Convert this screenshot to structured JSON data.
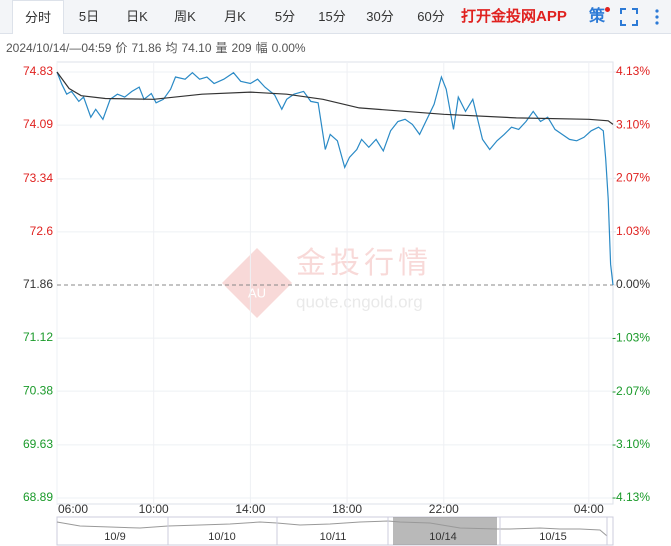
{
  "toolbar": {
    "tabs": [
      "分时",
      "5日",
      "日K",
      "周K",
      "月K",
      "5分",
      "15分",
      "30分",
      "60分"
    ],
    "app_link": "打开金投网APP",
    "strategy": "策"
  },
  "info": {
    "time": "2024/10/14/—04:59",
    "items": [
      {
        "label": "价",
        "value": "71.86"
      },
      {
        "label": "均",
        "value": "74.10"
      },
      {
        "label": "量",
        "value": "209"
      },
      {
        "label": "幅",
        "value": "0.00%"
      }
    ]
  },
  "watermark": {
    "name": "金投行情",
    "url": "quote.cngold.org",
    "badge": "AU"
  },
  "navigator": {
    "dates": [
      "10/9",
      "10/10",
      "10/11",
      "10/14",
      "10/15"
    ]
  },
  "chart_data": {
    "type": "line",
    "xlim": [
      0,
      23
    ],
    "xticks": [
      {
        "value": 0,
        "label": "06:00"
      },
      {
        "value": 4,
        "label": "10:00"
      },
      {
        "value": 8,
        "label": "14:00"
      },
      {
        "value": 12,
        "label": "18:00"
      },
      {
        "value": 16,
        "label": "22:00"
      },
      {
        "value": 22,
        "label": "04:00"
      }
    ],
    "ylim": [
      68.89,
      74.83
    ],
    "yticks": [
      68.89,
      69.63,
      70.38,
      71.12,
      71.86,
      72.6,
      73.34,
      74.09,
      74.83
    ],
    "y2lim": [
      -4.13,
      4.13
    ],
    "y2ticks": [
      {
        "value": -4.13,
        "label": "-4.13%"
      },
      {
        "value": -3.1,
        "label": "-3.10%"
      },
      {
        "value": -2.07,
        "label": "-2.07%"
      },
      {
        "value": -1.03,
        "label": "-1.03%"
      },
      {
        "value": 0,
        "label": "0.00%"
      },
      {
        "value": 1.03,
        "label": "1.03%"
      },
      {
        "value": 2.07,
        "label": "2.07%"
      },
      {
        "value": 3.1,
        "label": "3.10%"
      },
      {
        "value": 4.13,
        "label": "4.13%"
      }
    ],
    "baseline": 71.86,
    "grid": true,
    "series": [
      {
        "color": "#2a8ac6",
        "x": [
          0,
          0.2,
          0.4,
          0.6,
          0.9,
          1.1,
          1.4,
          1.6,
          1.9,
          2.2,
          2.5,
          2.8,
          3.1,
          3.4,
          3.6,
          3.9,
          4.1,
          4.4,
          4.7,
          4.9,
          5.3,
          5.6,
          5.9,
          6.2,
          6.5,
          6.9,
          7.3,
          7.6,
          8,
          8.3,
          8.6,
          9,
          9.3,
          9.5,
          9.8,
          10.2,
          10.5,
          10.8,
          11.1,
          11.3,
          11.6,
          11.9,
          12.1,
          12.4,
          12.6,
          12.9,
          13.2,
          13.5,
          13.8,
          14.1,
          14.4,
          14.7,
          15,
          15.3,
          15.6,
          15.9,
          16.1,
          16.4,
          16.6,
          16.9,
          17.2,
          17.6,
          17.9,
          18.2,
          18.5,
          18.8,
          19.1,
          19.4,
          19.7,
          20,
          20.3,
          20.6,
          20.9,
          21.2,
          21.5,
          21.8,
          22.1,
          22.4,
          22.6,
          22.7,
          22.8,
          22.9,
          23
        ],
        "values": [
          74.83,
          74.66,
          74.52,
          74.56,
          74.42,
          74.48,
          74.2,
          74.31,
          74.17,
          74.45,
          74.52,
          74.48,
          74.56,
          74.62,
          74.45,
          74.53,
          74.4,
          74.45,
          74.59,
          74.76,
          74.73,
          74.82,
          74.73,
          74.76,
          74.67,
          74.73,
          74.82,
          74.7,
          74.67,
          74.73,
          74.62,
          74.51,
          74.31,
          74.45,
          74.52,
          74.56,
          74.42,
          74.4,
          73.75,
          73.96,
          73.87,
          73.5,
          73.64,
          73.75,
          73.89,
          73.78,
          73.89,
          73.73,
          74.01,
          74.14,
          74.17,
          74.1,
          73.96,
          74.17,
          74.38,
          74.76,
          74.59,
          74.03,
          74.48,
          74.28,
          74.45,
          73.89,
          73.75,
          73.87,
          73.96,
          74.06,
          74.03,
          74.14,
          74.28,
          74.14,
          74.2,
          74.03,
          73.96,
          73.89,
          73.87,
          73.92,
          74.01,
          74.06,
          74.01,
          73.62,
          73.06,
          72.15,
          71.86
        ]
      },
      {
        "color": "#333333",
        "x": [
          0,
          0.5,
          1,
          2,
          4,
          6,
          8,
          9.5,
          11,
          12.5,
          16,
          19,
          22,
          22.8,
          23
        ],
        "values": [
          74.83,
          74.6,
          74.5,
          74.46,
          74.45,
          74.52,
          74.55,
          74.52,
          74.45,
          74.33,
          74.24,
          74.19,
          74.17,
          74.15,
          74.1
        ]
      }
    ]
  }
}
